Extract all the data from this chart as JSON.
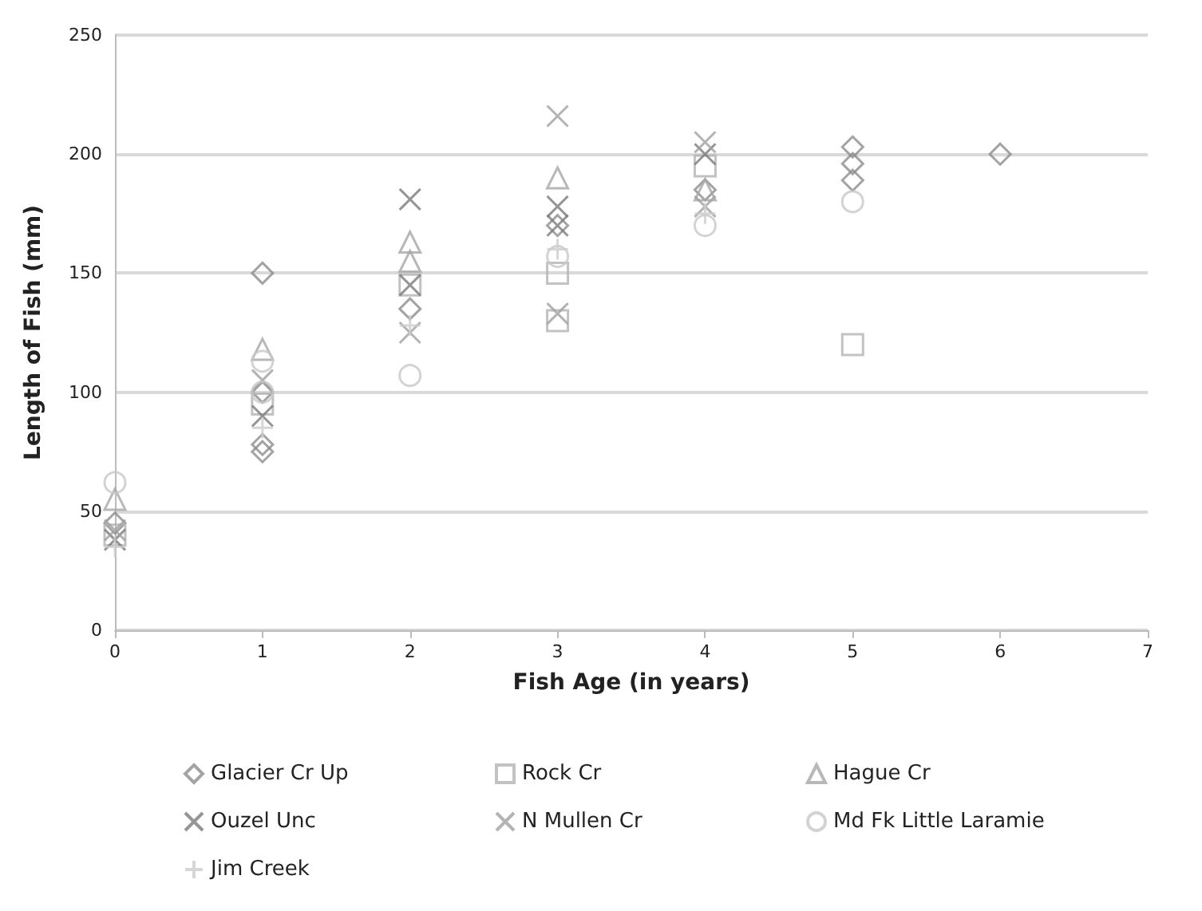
{
  "chart_data": {
    "type": "scatter",
    "xlabel": "Fish Age (in years)",
    "ylabel": "Length of Fish (mm)",
    "xlim": [
      0,
      7
    ],
    "xticks": [
      0,
      1,
      2,
      3,
      4,
      5,
      6,
      7
    ],
    "ylim": [
      0,
      250
    ],
    "yticks": [
      0,
      50,
      100,
      150,
      200,
      250
    ],
    "grid": "y",
    "legend": "bottom",
    "series": [
      {
        "name": "Glacier Cr Up",
        "color": "#8c8c8c",
        "marker": "diamond",
        "x": [
          0,
          1,
          1,
          1,
          1,
          2,
          3,
          4,
          5,
          5,
          5,
          6
        ],
        "values": [
          45,
          150,
          75,
          78,
          100,
          135,
          170,
          185,
          203,
          196,
          189,
          200
        ]
      },
      {
        "name": "Rock Cr",
        "color": "#b3b3b3",
        "marker": "square",
        "x": [
          0,
          1,
          2,
          3,
          3,
          4,
          5
        ],
        "values": [
          40,
          95,
          145,
          150,
          130,
          195,
          120
        ]
      },
      {
        "name": "Hague Cr",
        "color": "#a6a6a6",
        "marker": "triangle",
        "x": [
          0,
          1,
          2,
          2,
          3,
          4
        ],
        "values": [
          55,
          118,
          163,
          155,
          190,
          185
        ]
      },
      {
        "name": "Ouzel Unc",
        "color": "#7a7a7a",
        "marker": "cross",
        "x": [
          0,
          1,
          2,
          2,
          3,
          3,
          4
        ],
        "values": [
          38,
          90,
          181,
          145,
          178,
          170,
          200
        ]
      },
      {
        "name": "N Mullen Cr",
        "color": "#a0a0a0",
        "marker": "cross",
        "x": [
          0,
          1,
          2,
          3,
          3,
          4,
          4
        ],
        "values": [
          42,
          105,
          125,
          216,
          133,
          205,
          178
        ]
      },
      {
        "name": "Md Fk Little Laramie",
        "color": "#c8c8c8",
        "marker": "circle",
        "x": [
          0,
          1,
          1,
          2,
          3,
          4,
          5
        ],
        "values": [
          62,
          113,
          100,
          107,
          157,
          170,
          180
        ]
      },
      {
        "name": "Jim Creek",
        "color": "#cccccc",
        "marker": "plus",
        "x": [
          0,
          1,
          2,
          3,
          4
        ],
        "values": [
          35,
          85,
          128,
          160,
          175
        ]
      }
    ]
  }
}
